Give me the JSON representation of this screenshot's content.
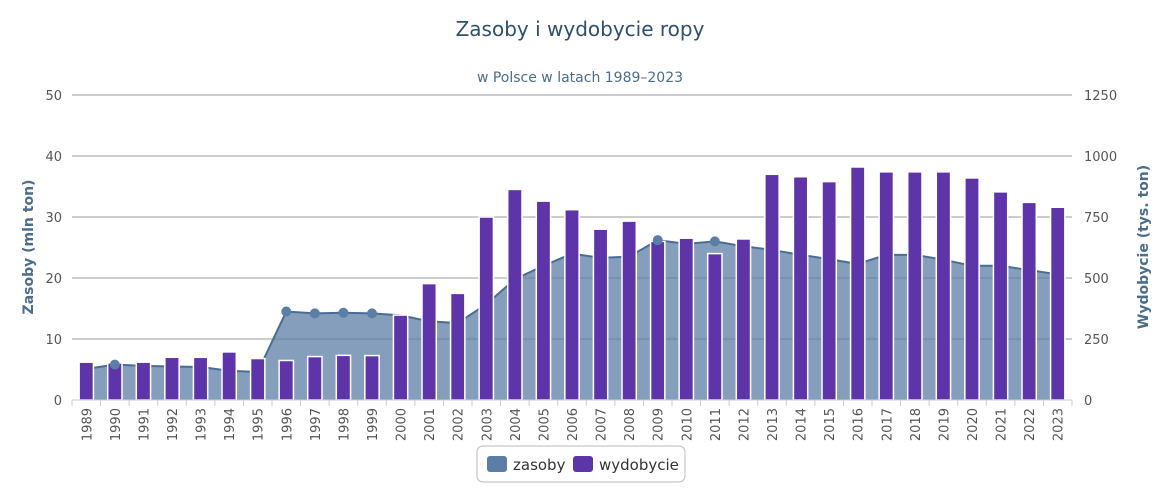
{
  "chart_data": {
    "type": "bar",
    "title": "Zasoby i wydobycie ropy",
    "subtitle": "w Polsce w latach 1989–2023",
    "categories": [
      "1989",
      "1990",
      "1991",
      "1992",
      "1993",
      "1994",
      "1995",
      "1996",
      "1997",
      "1998",
      "1999",
      "2000",
      "2001",
      "2002",
      "2003",
      "2004",
      "2005",
      "2006",
      "2007",
      "2008",
      "2009",
      "2010",
      "2011",
      "2012",
      "2013",
      "2014",
      "2015",
      "2016",
      "2017",
      "2018",
      "2019",
      "2020",
      "2021",
      "2022",
      "2023"
    ],
    "y_left": {
      "label": "Zasoby (mln ton)",
      "ylim": [
        0,
        50
      ],
      "ticks": [
        "0",
        "10",
        "20",
        "30",
        "40",
        "50"
      ]
    },
    "y_right": {
      "label": "Wydobycie (tys. ton)",
      "ylim": [
        0,
        1250
      ],
      "ticks": [
        "0",
        "250",
        "500",
        "750",
        "1000",
        "1250"
      ]
    },
    "grid": true,
    "legend_position": "bottom-center",
    "series": [
      {
        "name": "zasoby",
        "type": "area",
        "axis": "left",
        "color": "#5b7ea6",
        "values": [
          5.1,
          5.8,
          5.6,
          5.5,
          5.4,
          4.8,
          4.6,
          14.5,
          14.2,
          14.3,
          14.2,
          13.9,
          12.9,
          12.6,
          15.7,
          19.8,
          22.0,
          24.0,
          23.3,
          23.5,
          26.2,
          25.6,
          26.0,
          25.2,
          24.6,
          23.8,
          23.1,
          22.3,
          23.8,
          23.8,
          23.0,
          22.0,
          22.0,
          21.3,
          20.6
        ],
        "markers_at": [
          "1990",
          "1996",
          "1997",
          "1998",
          "1999",
          "2009",
          "2011"
        ]
      },
      {
        "name": "wydobycie",
        "type": "bar",
        "axis": "right",
        "color": "#5e35a8",
        "values": [
          155,
          152,
          155,
          175,
          175,
          197,
          170,
          162,
          178,
          183,
          182,
          348,
          477,
          437,
          750,
          863,
          815,
          780,
          700,
          733,
          650,
          663,
          600,
          660,
          925,
          915,
          895,
          955,
          935,
          935,
          935,
          910,
          853,
          810,
          790
        ]
      }
    ]
  }
}
